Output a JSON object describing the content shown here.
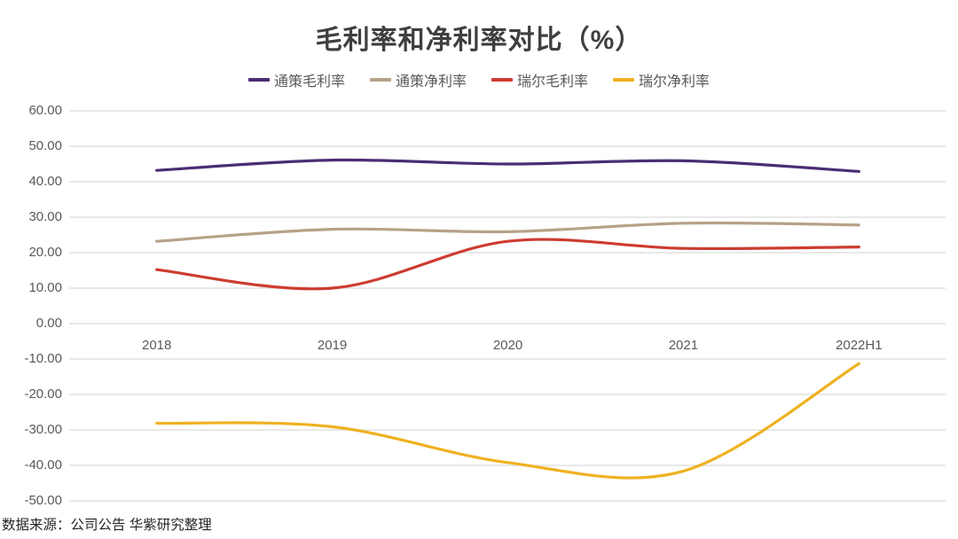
{
  "chart_data": {
    "type": "line",
    "title": "毛利率和净利率对比（%）",
    "categories": [
      "2018",
      "2019",
      "2020",
      "2021",
      "2022H1"
    ],
    "series": [
      {
        "name": "通策毛利率",
        "color": "#4A2D73",
        "values": [
          43.2,
          46.1,
          45.0,
          45.9,
          42.9
        ]
      },
      {
        "name": "通策净利率",
        "color": "#B5A287",
        "values": [
          23.2,
          26.6,
          25.9,
          28.3,
          27.8
        ]
      },
      {
        "name": "瑞尔毛利率",
        "color": "#CD3C30",
        "values": [
          15.2,
          10.0,
          23.2,
          21.2,
          21.6
        ]
      },
      {
        "name": "瑞尔净利率",
        "color": "#EFB120",
        "values": [
          -28.1,
          -29.1,
          -39.2,
          -41.6,
          -11.3
        ]
      }
    ],
    "y_ticks": [
      "60.00",
      "50.00",
      "40.00",
      "30.00",
      "20.00",
      "10.00",
      "0.00",
      "-10.00",
      "-20.00",
      "-30.00",
      "-40.00",
      "-50.00"
    ],
    "y_tick_values": [
      60,
      50,
      40,
      30,
      20,
      10,
      0,
      -10,
      -20,
      -30,
      -40,
      -50
    ],
    "ylim": [
      -50,
      60
    ],
    "grid": true,
    "legend_position": "top",
    "gridline_color": "#DBDBDB",
    "source": "数据来源：公司公告 华紫研究整理"
  }
}
